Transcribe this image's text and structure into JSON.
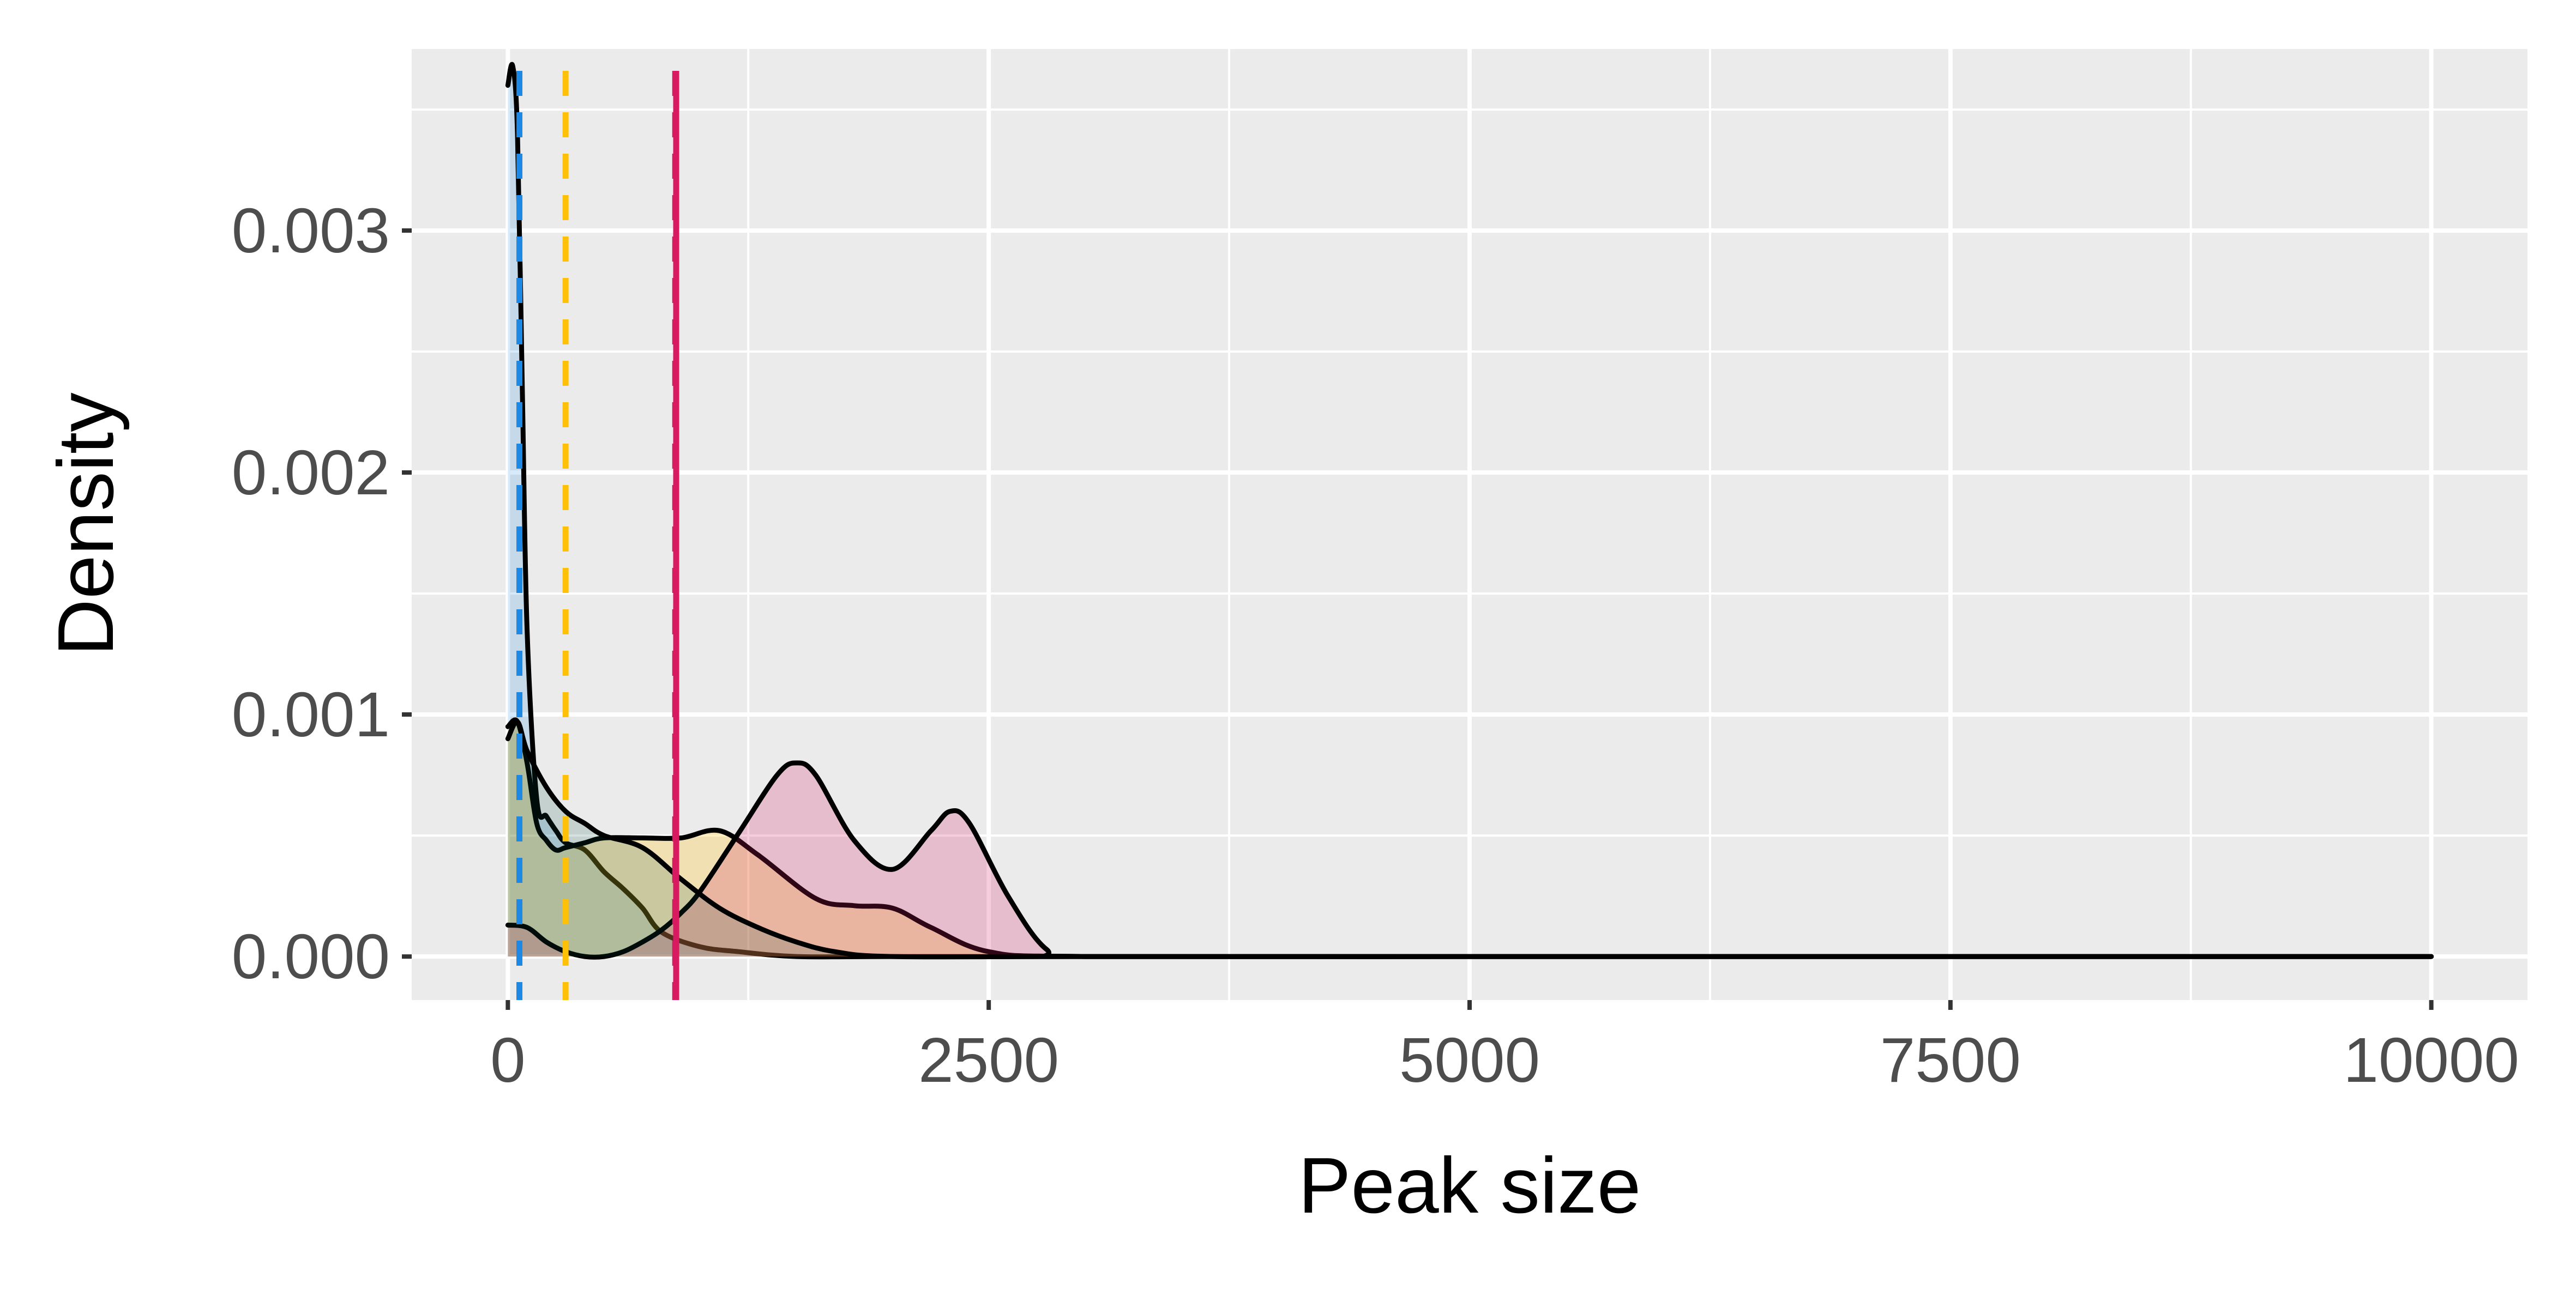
{
  "chart_data": {
    "type": "area",
    "title": "",
    "xlabel": "Peak size",
    "ylabel": "Density",
    "xlim": [
      -500,
      10500
    ],
    "ylim": [
      -0.00018,
      0.00375
    ],
    "x_ticks": [
      0,
      2500,
      5000,
      7500,
      10000
    ],
    "x_tick_labels": [
      "0",
      "2500",
      "5000",
      "7500",
      "10000"
    ],
    "y_ticks": [
      0,
      0.001,
      0.002,
      0.003
    ],
    "y_tick_labels": [
      "0.000",
      "0.001",
      "0.002",
      "0.003"
    ],
    "grid": true,
    "legend": "none",
    "panel_background": "#ebebeb",
    "series": [
      {
        "fill": "#1e88e5",
        "fill_opacity": 0.18,
        "line_color": "#000000",
        "x": [
          0,
          25,
          50,
          75,
          100,
          150,
          200,
          250,
          300,
          400,
          500,
          600,
          700,
          800,
          1000,
          1200,
          1500,
          2000,
          3000,
          5000,
          7500,
          10000
        ],
        "y": [
          0.0036,
          0.00368,
          0.0034,
          0.00235,
          0.00135,
          0.00065,
          0.00058,
          0.00052,
          0.00047,
          0.00044,
          0.00035,
          0.00028,
          0.0002,
          0.0001,
          4e-05,
          2e-05,
          0.0,
          0.0,
          0.0,
          0.0,
          0.0,
          0.0
        ]
      },
      {
        "fill": "#ffc107",
        "fill_opacity": 0.25,
        "line_color": "#000000",
        "x": [
          0,
          50,
          100,
          150,
          200,
          250,
          300,
          400,
          500,
          700,
          900,
          1100,
          1300,
          1600,
          1800,
          2000,
          2200,
          2500,
          3000,
          5000,
          7500,
          10000
        ],
        "y": [
          0.00095,
          0.00097,
          0.0008,
          0.00055,
          0.00048,
          0.00044,
          0.00045,
          0.00047,
          0.00049,
          0.00049,
          0.00049,
          0.00052,
          0.00042,
          0.00024,
          0.00021,
          0.0002,
          0.00012,
          2e-05,
          0.0,
          0.0,
          0.0,
          0.0
        ]
      },
      {
        "fill": "#d81b60",
        "fill_opacity": 0.22,
        "line_color": "#000000",
        "x": [
          0,
          100,
          200,
          300,
          400,
          500,
          600,
          700,
          800,
          900,
          1000,
          1200,
          1400,
          1500,
          1600,
          1800,
          2000,
          2200,
          2300,
          2400,
          2600,
          2800,
          3000,
          5000,
          7500,
          10000
        ],
        "y": [
          0.00013,
          0.00012,
          6e-05,
          2e-05,
          0.0,
          0.0,
          2e-05,
          6e-05,
          0.00011,
          0.00018,
          0.00027,
          0.00051,
          0.00075,
          0.0008,
          0.00075,
          0.00048,
          0.00036,
          0.00052,
          0.0006,
          0.00055,
          0.00025,
          3e-05,
          0.0,
          0.0,
          0.0,
          0.0
        ]
      },
      {
        "fill": "#004d40",
        "fill_opacity": 0.16,
        "line_color": "#000000",
        "x": [
          0,
          50,
          100,
          200,
          300,
          400,
          500,
          700,
          900,
          1100,
          1300,
          1500,
          1700,
          2000,
          3000,
          5000,
          7500,
          10000
        ],
        "y": [
          0.0009,
          0.00097,
          0.00085,
          0.0007,
          0.0006,
          0.00055,
          0.0005,
          0.00045,
          0.00032,
          0.0002,
          0.00012,
          6e-05,
          2e-05,
          0.0,
          0.0,
          0.0,
          0.0,
          0.0
        ]
      }
    ],
    "vlines": [
      {
        "x": 60,
        "color": "#1e88e5",
        "style": "dashed"
      },
      {
        "x": 300,
        "color": "#ffc107",
        "style": "dashed"
      },
      {
        "x": 870,
        "color": "#d81b60",
        "style": "dashed"
      },
      {
        "x": 875,
        "color": "#d81b60",
        "style": "solid"
      }
    ]
  }
}
